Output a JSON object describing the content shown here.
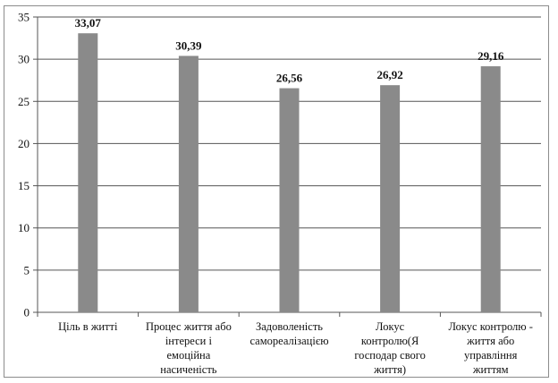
{
  "colors": {
    "bar": "#8a8a8a",
    "axis": "#555555",
    "grid": "#555555",
    "background": "#ffffff"
  },
  "chart_data": {
    "type": "bar",
    "title": "",
    "xlabel": "",
    "ylabel": "",
    "ylim": [
      0,
      35
    ],
    "yticks": [
      "0",
      "5",
      "10",
      "15",
      "20",
      "25",
      "30",
      "35"
    ],
    "grid": true,
    "legend": "none",
    "categories": [
      [
        "Ціль в житті"
      ],
      [
        "Процес життя або",
        "інтереси і",
        "емоційна",
        "насиченість"
      ],
      [
        "Задоволеність",
        "самореалізацією"
      ],
      [
        "Локус",
        "контролю(Я",
        "господар свого",
        "життя)"
      ],
      [
        "Локус контролю -",
        "життя або",
        "управління",
        "життям"
      ]
    ],
    "values": [
      33.07,
      30.39,
      26.56,
      26.92,
      29.16
    ],
    "data_labels": [
      "33,07",
      "30,39",
      "26,56",
      "26,92",
      "29,16"
    ]
  }
}
